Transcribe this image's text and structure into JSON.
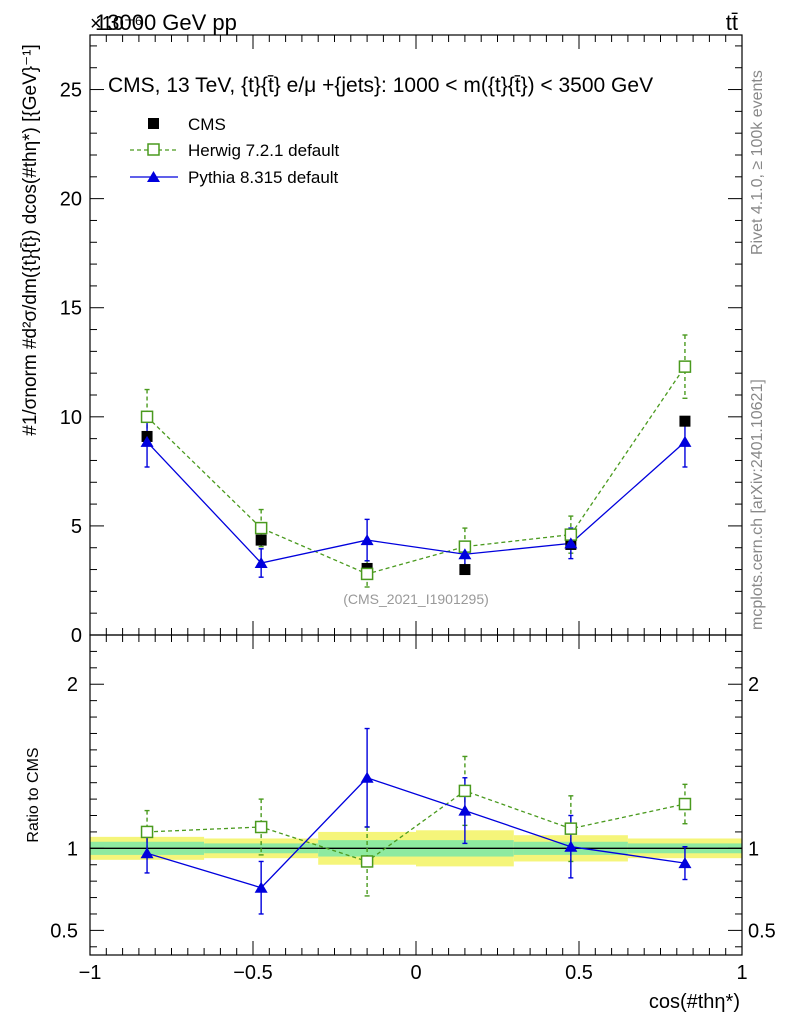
{
  "header": {
    "left_text": "13000 GeV pp",
    "right_text": "tt̄",
    "exponent_label": "×10⁻⁶"
  },
  "side_labels": {
    "rivet": "Rivet 4.1.0, ≥ 100k events",
    "mcplots": "mcplots.cern.ch [arXiv:2401.10621]"
  },
  "chart_data": [
    {
      "type": "scatter",
      "panel": "main",
      "title": "CMS, 13 TeV, {t}{t̄} e/μ +{jets}: 1000 < m({t}{t̄}) < 3500 GeV",
      "watermark": "(CMS_2021_I1901295)",
      "ylabel": "#1/σnorm #d²σ/dm({t}{t̄}) dcos(#thη*) [{GeV}⁻¹]",
      "xlabel": "",
      "y_multiplier": "1e-6",
      "xlim": [
        -1.0,
        1.0
      ],
      "ylim": [
        0,
        27.5
      ],
      "yticks": [
        0,
        5,
        10,
        15,
        20,
        25
      ],
      "xticks": [
        -1,
        -0.5,
        0,
        0.5,
        1
      ],
      "bin_edges": [
        -1.0,
        -0.65,
        -0.3,
        0.0,
        0.3,
        0.65,
        1.0
      ],
      "x": [
        -0.825,
        -0.475,
        -0.15,
        0.15,
        0.475,
        0.825
      ],
      "legend": {
        "position": "top-left",
        "entries": [
          "CMS",
          "Herwig 7.2.1 default",
          "Pythia 8.315 default"
        ]
      },
      "series": [
        {
          "name": "CMS",
          "style": "square",
          "color": "#000000",
          "values": [
            9.1,
            4.35,
            3.05,
            3.0,
            4.15,
            9.8
          ],
          "err": [
            0.2,
            0.15,
            0.15,
            0.15,
            0.15,
            0.2
          ]
        },
        {
          "name": "Herwig 7.2.1 default",
          "style": "open-square-dashed",
          "color": "#4a9a1e",
          "values": [
            10.0,
            4.9,
            2.8,
            4.05,
            4.6,
            12.3
          ],
          "err": [
            1.25,
            0.85,
            0.6,
            0.85,
            0.85,
            1.45
          ]
        },
        {
          "name": "Pythia 8.315 default",
          "style": "triangle-solid",
          "color": "#0000dd",
          "values": [
            8.85,
            3.3,
            4.35,
            3.7,
            4.2,
            8.85
          ],
          "err": [
            1.15,
            0.65,
            0.95,
            0.6,
            0.7,
            1.15
          ]
        }
      ]
    },
    {
      "type": "scatter",
      "panel": "ratio",
      "ylabel": "Ratio to CMS",
      "xlabel": "cos(#thη*)",
      "xlim": [
        -1.0,
        1.0
      ],
      "ylim": [
        0.35,
        2.3
      ],
      "yticks": [
        0.5,
        1,
        2
      ],
      "xticks": [
        -1,
        -0.5,
        0,
        0.5,
        1
      ],
      "bin_edges": [
        -1.0,
        -0.65,
        -0.3,
        0.0,
        0.3,
        0.65,
        1.0
      ],
      "x": [
        -0.825,
        -0.475,
        -0.15,
        0.15,
        0.475,
        0.825
      ],
      "bands": {
        "inner": [
          0.04,
          0.03,
          0.05,
          0.05,
          0.04,
          0.03
        ],
        "outer": [
          0.07,
          0.06,
          0.1,
          0.11,
          0.08,
          0.06
        ]
      },
      "series": [
        {
          "name": "Herwig 7.2.1 default",
          "color": "#4a9a1e",
          "values": [
            1.1,
            1.13,
            0.92,
            1.35,
            1.12,
            1.27
          ],
          "err": [
            0.13,
            0.17,
            0.21,
            0.21,
            0.2,
            0.12
          ]
        },
        {
          "name": "Pythia 8.315 default",
          "color": "#0000dd",
          "values": [
            0.97,
            0.76,
            1.43,
            1.23,
            1.01,
            0.91
          ],
          "err": [
            0.12,
            0.16,
            0.3,
            0.2,
            0.19,
            0.1
          ]
        }
      ]
    }
  ],
  "colors": {
    "band_inner": "#8eeaa0",
    "band_outer": "#f5f57a",
    "axis": "#000000",
    "side_text": "#888888"
  }
}
